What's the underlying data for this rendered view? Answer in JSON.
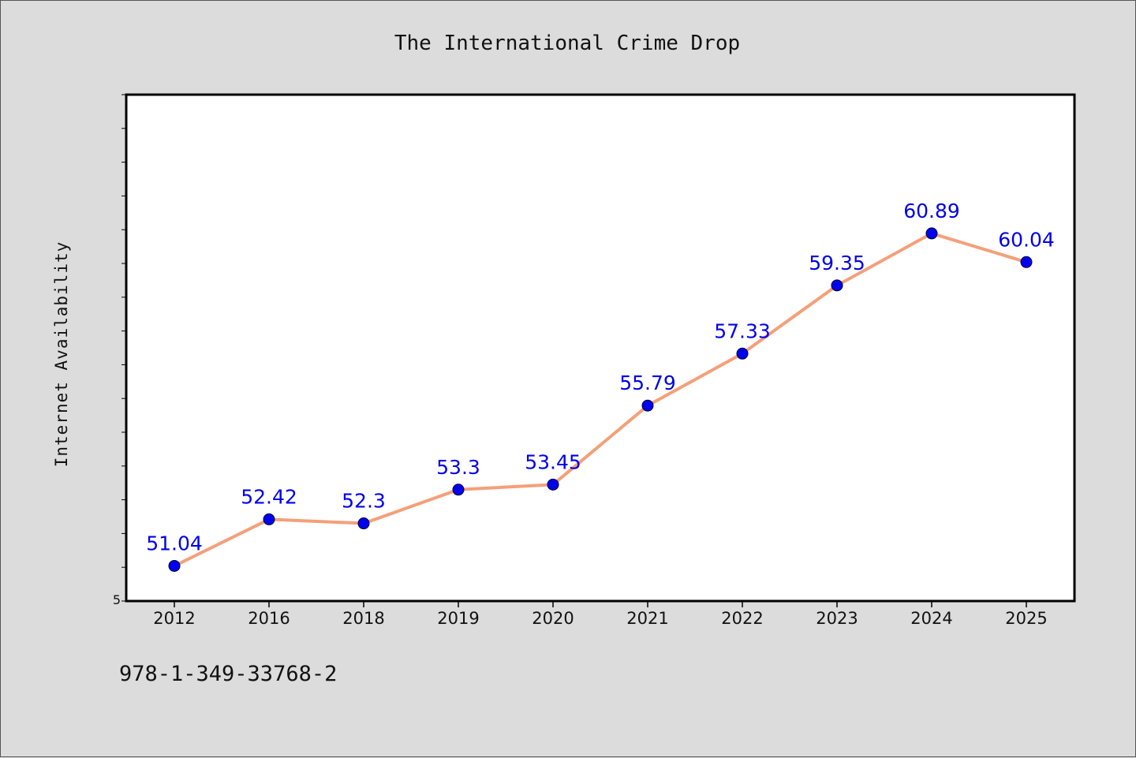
{
  "chart_data": {
    "type": "line",
    "title": "The International Crime Drop",
    "xlabel": "",
    "ylabel": "Internet Availability",
    "categories": [
      "2012",
      "2016",
      "2018",
      "2019",
      "2020",
      "2021",
      "2022",
      "2023",
      "2024",
      "2025"
    ],
    "series": [
      {
        "values": [
          51.04,
          52.42,
          52.3,
          53.3,
          53.45,
          55.79,
          57.33,
          59.35,
          60.89,
          60.04
        ],
        "labels": [
          "51.04",
          "52.42",
          "52.3",
          "53.3",
          "53.45",
          "55.79",
          "57.33",
          "59.35",
          "60.89",
          "60.04"
        ],
        "line_color": "#f4a07a",
        "marker_color": "#0000ee",
        "label_color": "#0000ee"
      }
    ],
    "ylim": [
      50,
      65
    ],
    "y_tick_step": 1,
    "y_tick_labels": [
      "5"
    ],
    "grid": false,
    "legend": "none"
  },
  "footer": {
    "code": "978-1-349-33768-2"
  },
  "colors": {
    "background": "#dcdcdc",
    "plot_background": "#ffffff",
    "axis": "#000000"
  }
}
